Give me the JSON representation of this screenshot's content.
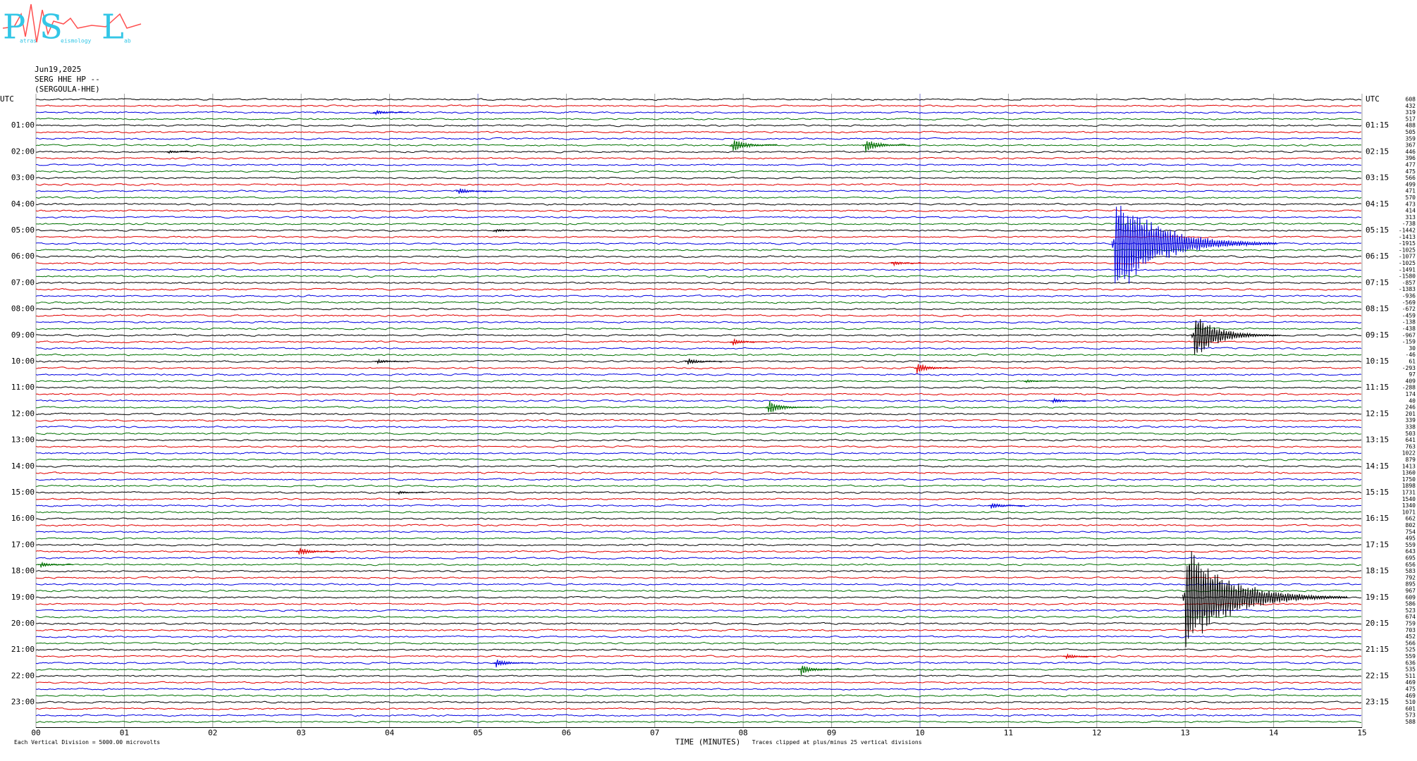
{
  "chart_data": {
    "type": "helicorder",
    "logo": {
      "letters": [
        "P",
        "S",
        "L"
      ],
      "small": [
        "atras",
        "eismology",
        "ab"
      ]
    },
    "date": "Jun19,2025",
    "station": "SERG HHE HP --",
    "station_name": "(SERGOULA-HHE)",
    "left_labels": [
      "UTC",
      "01:00",
      "02:00",
      "03:00",
      "04:00",
      "05:00",
      "06:00",
      "07:00",
      "08:00",
      "09:00",
      "10:00",
      "11:00",
      "12:00",
      "13:00",
      "14:00",
      "15:00",
      "16:00",
      "17:00",
      "18:00",
      "19:00",
      "20:00",
      "21:00",
      "22:00",
      "23:00"
    ],
    "right_labels": [
      "UTC",
      "01:15",
      "02:15",
      "03:15",
      "04:15",
      "05:15",
      "06:15",
      "07:15",
      "08:15",
      "09:15",
      "10:15",
      "11:15",
      "12:15",
      "13:15",
      "14:15",
      "15:15",
      "16:15",
      "17:15",
      "18:15",
      "19:15",
      "20:15",
      "21:15",
      "22:15",
      "23:15"
    ],
    "trace_values": [
      608,
      432,
      319,
      517,
      488,
      505,
      359,
      367,
      446,
      396,
      477,
      475,
      566,
      499,
      471,
      570,
      473,
      414,
      313,
      -738,
      -1442,
      -1413,
      -1915,
      -1025,
      -1077,
      -1025,
      -1491,
      -1580,
      -857,
      -1383,
      -936,
      -569,
      -672,
      -459,
      -138,
      -438,
      -967,
      -159,
      30,
      -46,
      61,
      -293,
      97,
      409,
      -288,
      174,
      40,
      246,
      201,
      339,
      338,
      503,
      641,
      763,
      1022,
      879,
      1413,
      1360,
      1750,
      1898,
      1731,
      1540,
      1340,
      1071,
      662,
      802,
      754,
      495,
      559,
      643,
      695,
      656,
      583,
      792,
      895,
      967,
      609,
      586,
      523,
      674,
      759,
      703,
      452,
      566,
      525,
      559,
      636,
      535,
      511,
      469,
      475,
      469,
      510,
      601,
      573,
      588
    ],
    "trace_colors": [
      "#000000",
      "#e00000",
      "#0000e0",
      "#007000"
    ],
    "xlim": [
      0,
      15
    ],
    "xticks": [
      {
        "value": 0,
        "label": "00"
      },
      {
        "value": 1,
        "label": "01"
      },
      {
        "value": 2,
        "label": "02"
      },
      {
        "value": 3,
        "label": "03"
      },
      {
        "value": 4,
        "label": "04"
      },
      {
        "value": 5,
        "label": "05"
      },
      {
        "value": 6,
        "label": "06"
      },
      {
        "value": 7,
        "label": "07"
      },
      {
        "value": 8,
        "label": "08"
      },
      {
        "value": 9,
        "label": "09"
      },
      {
        "value": 10,
        "label": "10"
      },
      {
        "value": 11,
        "label": "11"
      },
      {
        "value": 12,
        "label": "12"
      },
      {
        "value": 13,
        "label": "13"
      },
      {
        "value": 14,
        "label": "14"
      },
      {
        "value": 15,
        "label": "15"
      }
    ],
    "xlabel": "TIME (MINUTES)",
    "scale_note": "Each Vertical Division = 5000.00 microvolts",
    "clip_note": "Traces clipped at plus/minus 25 vertical divisions",
    "events": [
      {
        "row": 2,
        "minute": 3.84,
        "size": 0.5
      },
      {
        "row": 7,
        "minute": 7.88,
        "size": 1.3
      },
      {
        "row": 7,
        "minute": 9.38,
        "size": 1.3
      },
      {
        "row": 8,
        "minute": 1.5,
        "size": 0.3
      },
      {
        "row": 14,
        "minute": 4.78,
        "size": 0.6
      },
      {
        "row": 20,
        "minute": 5.2,
        "size": 0.3
      },
      {
        "row": 22,
        "minute": 12.2,
        "size": 9
      },
      {
        "row": 25,
        "minute": 9.7,
        "size": 0.4
      },
      {
        "row": 36,
        "minute": 13.1,
        "size": 4
      },
      {
        "row": 37,
        "minute": 7.88,
        "size": 0.6
      },
      {
        "row": 40,
        "minute": 7.37,
        "size": 0.6
      },
      {
        "row": 40,
        "minute": 3.86,
        "size": 0.4
      },
      {
        "row": 41,
        "minute": 9.96,
        "size": 1
      },
      {
        "row": 43,
        "minute": 11.2,
        "size": 0.3
      },
      {
        "row": 47,
        "minute": 8.28,
        "size": 1.3
      },
      {
        "row": 46,
        "minute": 11.5,
        "size": 0.5
      },
      {
        "row": 60,
        "minute": 4.1,
        "size": 0.3
      },
      {
        "row": 62,
        "minute": 10.8,
        "size": 0.6
      },
      {
        "row": 69,
        "minute": 2.97,
        "size": 0.8
      },
      {
        "row": 71,
        "minute": 0.05,
        "size": 0.5
      },
      {
        "row": 76,
        "minute": 13.0,
        "size": 9
      },
      {
        "row": 85,
        "minute": 11.65,
        "size": 0.5
      },
      {
        "row": 86,
        "minute": 5.2,
        "size": 0.8
      },
      {
        "row": 87,
        "minute": 8.65,
        "size": 1
      }
    ]
  }
}
